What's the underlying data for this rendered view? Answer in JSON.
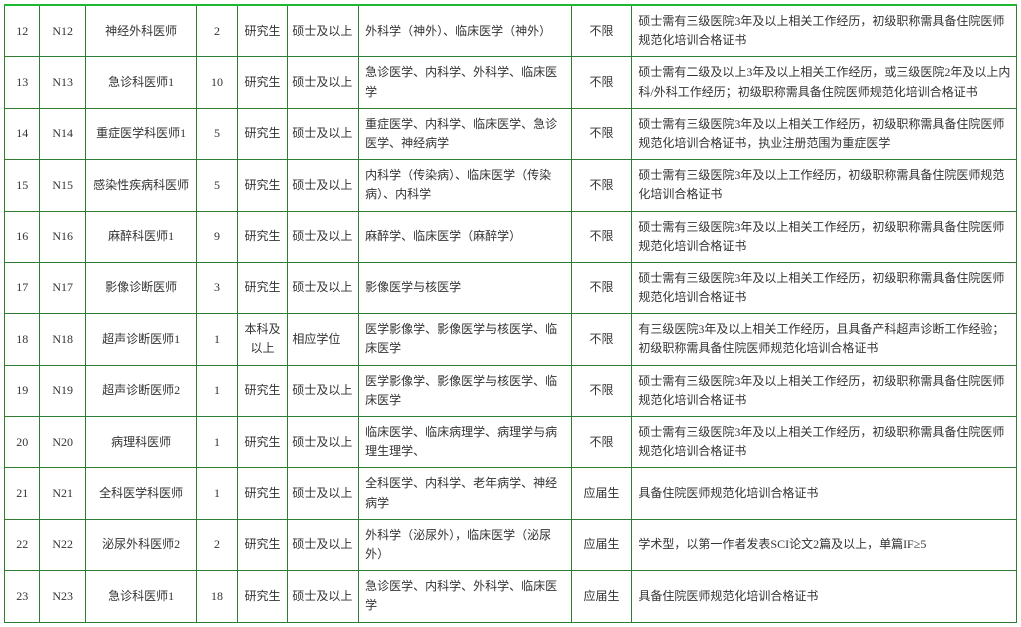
{
  "table": {
    "border_color": "#2e7d32",
    "top_accent_color": "#1eb933",
    "background_color": "#ffffff",
    "text_color": "#333333",
    "font_family": "SimSun",
    "base_font_size_pt": 9,
    "columns": [
      {
        "key": "idx",
        "width_pct": 3.5,
        "align": "center"
      },
      {
        "key": "code",
        "width_pct": 4.5,
        "align": "center"
      },
      {
        "key": "pos",
        "width_pct": 11,
        "align": "center"
      },
      {
        "key": "qty",
        "width_pct": 4,
        "align": "center"
      },
      {
        "key": "edu",
        "width_pct": 5,
        "align": "center"
      },
      {
        "key": "deg",
        "width_pct": 7,
        "align": "left"
      },
      {
        "key": "major",
        "width_pct": 21,
        "align": "left"
      },
      {
        "key": "limit",
        "width_pct": 6,
        "align": "center"
      },
      {
        "key": "req",
        "width_pct": 38,
        "align": "left"
      }
    ],
    "rows": [
      {
        "idx": "12",
        "code": "N12",
        "pos": "神经外科医师",
        "qty": "2",
        "edu": "研究生",
        "deg": "硕士及以上",
        "major": "外科学（神外）、临床医学（神外）",
        "limit": "不限",
        "req": "硕士需有三级医院3年及以上相关工作经历，初级职称需具备住院医师规范化培训合格证书"
      },
      {
        "idx": "13",
        "code": "N13",
        "pos": "急诊科医师1",
        "qty": "10",
        "edu": "研究生",
        "deg": "硕士及以上",
        "major": "急诊医学、内科学、外科学、临床医学",
        "limit": "不限",
        "req": "硕士需有二级及以上3年及以上相关工作经历，或三级医院2年及以上内科/外科工作经历；初级职称需具备住院医师规范化培训合格证书"
      },
      {
        "idx": "14",
        "code": "N14",
        "pos": "重症医学科医师1",
        "qty": "5",
        "edu": "研究生",
        "deg": "硕士及以上",
        "major": "重症医学、内科学、临床医学、急诊医学、神经病学",
        "limit": "不限",
        "req": "硕士需有三级医院3年及以上相关工作经历，初级职称需具备住院医师规范化培训合格证书，执业注册范围为重症医学"
      },
      {
        "idx": "15",
        "code": "N15",
        "pos": "感染性疾病科医师",
        "qty": "5",
        "edu": "研究生",
        "deg": "硕士及以上",
        "major": "内科学（传染病）、临床医学（传染病）、内科学",
        "limit": "不限",
        "req": "硕士需有三级医院3年及以上工作经历，初级职称需具备住院医师规范化培训合格证书"
      },
      {
        "idx": "16",
        "code": "N16",
        "pos": "麻醉科医师1",
        "qty": "9",
        "edu": "研究生",
        "deg": "硕士及以上",
        "major": "麻醉学、临床医学（麻醉学）",
        "limit": "不限",
        "req": "硕士需有三级医院3年及以上相关工作经历，初级职称需具备住院医师规范化培训合格证书"
      },
      {
        "idx": "17",
        "code": "N17",
        "pos": "影像诊断医师",
        "qty": "3",
        "edu": "研究生",
        "deg": "硕士及以上",
        "major": "影像医学与核医学",
        "limit": "不限",
        "req": "硕士需有三级医院3年及以上相关工作经历，初级职称需具备住院医师规范化培训合格证书"
      },
      {
        "idx": "18",
        "code": "N18",
        "pos": "超声诊断医师1",
        "qty": "1",
        "edu": "本科及以上",
        "deg": "相应学位",
        "major": "医学影像学、影像医学与核医学、临床医学",
        "limit": "不限",
        "req": "有三级医院3年及以上相关工作经历，且具备产科超声诊断工作经验；初级职称需具备住院医师规范化培训合格证书"
      },
      {
        "idx": "19",
        "code": "N19",
        "pos": "超声诊断医师2",
        "qty": "1",
        "edu": "研究生",
        "deg": "硕士及以上",
        "major": "医学影像学、影像医学与核医学、临床医学",
        "limit": "不限",
        "req": "硕士需有三级医院3年及以上相关工作经历，初级职称需具备住院医师规范化培训合格证书"
      },
      {
        "idx": "20",
        "code": "N20",
        "pos": "病理科医师",
        "qty": "1",
        "edu": "研究生",
        "deg": "硕士及以上",
        "major": "临床医学、临床病理学、病理学与病理生理学、",
        "limit": "不限",
        "req": "硕士需有三级医院3年及以上相关工作经历，初级职称需具备住院医师规范化培训合格证书"
      },
      {
        "idx": "21",
        "code": "N21",
        "pos": "全科医学科医师",
        "qty": "1",
        "edu": "研究生",
        "deg": "硕士及以上",
        "major": "全科医学、内科学、老年病学、神经病学",
        "limit": "应届生",
        "req": "具备住院医师规范化培训合格证书"
      },
      {
        "idx": "22",
        "code": "N22",
        "pos": "泌尿外科医师2",
        "qty": "2",
        "edu": "研究生",
        "deg": "硕士及以上",
        "major": "外科学（泌尿外），临床医学（泌尿外）",
        "limit": "应届生",
        "req": "学术型，以第一作者发表SCI论文2篇及以上，单篇IF≥5"
      },
      {
        "idx": "23",
        "code": "N23",
        "pos": "急诊科医师1",
        "qty": "18",
        "edu": "研究生",
        "deg": "硕士及以上",
        "major": "急诊医学、内科学、外科学、临床医学",
        "limit": "应届生",
        "req": "具备住院医师规范化培训合格证书"
      }
    ]
  }
}
